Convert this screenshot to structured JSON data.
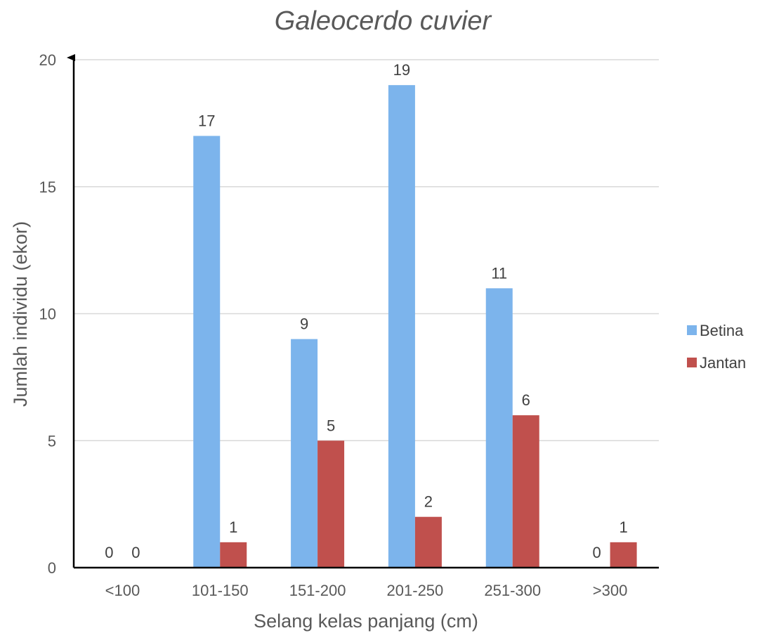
{
  "chart_data": {
    "type": "bar",
    "title": "Galeocerdo cuvier",
    "xlabel": "Selang kelas panjang (cm)",
    "ylabel": "Jumlah individu (ekor)",
    "categories": [
      "<100",
      "101-150",
      "151-200",
      "201-250",
      "251-300",
      ">300"
    ],
    "series": [
      {
        "name": "Betina",
        "values": [
          0,
          17,
          9,
          19,
          11,
          0
        ],
        "color": "#7cb4ec"
      },
      {
        "name": "Jantan",
        "values": [
          0,
          1,
          5,
          2,
          6,
          1
        ],
        "color": "#c0504d"
      }
    ],
    "ylim": [
      0,
      20
    ],
    "yticks": [
      "0",
      "5",
      "10",
      "15",
      "20"
    ],
    "grid": true,
    "legend_position": "right"
  }
}
